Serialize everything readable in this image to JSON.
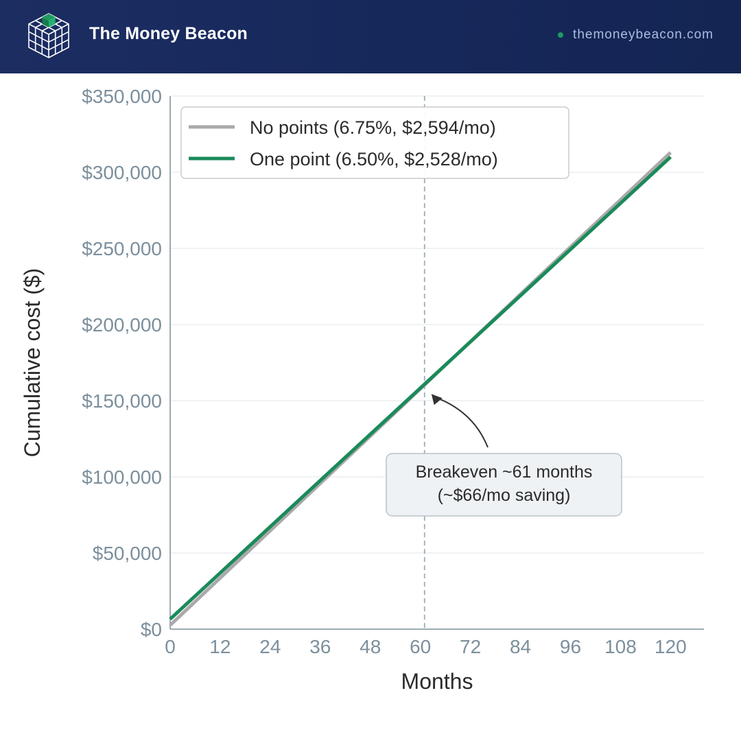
{
  "header": {
    "brand": "The Money Beacon",
    "site": "themoneybeacon.com",
    "logo_icon": "cube-grid-icon",
    "accent_color": "#1e9a62",
    "background_color": "#16285a"
  },
  "chart_data": {
    "type": "line",
    "title": "",
    "xlabel": "Months",
    "ylabel": "Cumulative cost ($)",
    "xlim": [
      0,
      128
    ],
    "ylim": [
      0,
      350000
    ],
    "xticks": [
      0,
      12,
      24,
      36,
      48,
      60,
      72,
      84,
      96,
      108,
      120
    ],
    "xtick_labels": [
      "0",
      "12",
      "24",
      "36",
      "48",
      "60",
      "72",
      "84",
      "96",
      "108",
      "120"
    ],
    "yticks": [
      0,
      50000,
      100000,
      150000,
      200000,
      250000,
      300000,
      350000
    ],
    "ytick_labels": [
      "$0",
      "$50,000",
      "$100,000",
      "$150,000",
      "$200,000",
      "$250,000",
      "$300,000",
      "$350,000"
    ],
    "grid": true,
    "legend_position": "top-left",
    "series": [
      {
        "name": "No points (6.75%, $2,594/mo)",
        "color": "#aaaaaa",
        "x": [
          0,
          120
        ],
        "y": [
          2594,
          313000
        ]
      },
      {
        "name": "One point (6.50%, $2,528/mo)",
        "color": "#1b8a5a",
        "x": [
          0,
          120
        ],
        "y": [
          6600,
          310000
        ]
      }
    ],
    "reference_line": {
      "x": 61,
      "style": "dashed",
      "color": "#9aacb8"
    },
    "annotation": {
      "lines": [
        "Breakeven ~61 months",
        "(~$66/mo saving)"
      ],
      "points_to": {
        "x": 61,
        "y": 158000
      }
    }
  }
}
